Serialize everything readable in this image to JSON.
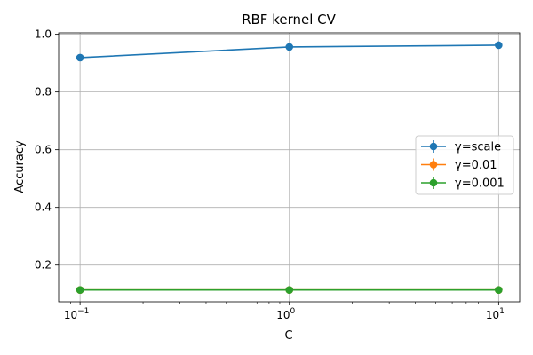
{
  "chart_data": {
    "type": "line",
    "title": "RBF kernel CV",
    "xlabel": "C",
    "ylabel": "Accuracy",
    "xscale": "log",
    "x": [
      0.1,
      1,
      10
    ],
    "xlim": [
      0.079,
      12.6
    ],
    "ylim": [
      0.073,
      1.005
    ],
    "x_tick_labels": [
      {
        "base": "10",
        "exp": "−1",
        "value": 0.1
      },
      {
        "base": "10",
        "exp": "0",
        "value": 1
      },
      {
        "base": "10",
        "exp": "1",
        "value": 10
      }
    ],
    "y_ticks": [
      0.2,
      0.4,
      0.6,
      0.8,
      1.0
    ],
    "y_tick_labels": [
      "0.2",
      "0.4",
      "0.6",
      "0.8",
      "1.0"
    ],
    "grid": true,
    "legend_position": "center-right",
    "series": [
      {
        "name": "γ=scale",
        "color": "#1f77b4",
        "values": [
          0.919,
          0.956,
          0.962
        ]
      },
      {
        "name": "γ=0.01",
        "color": "#ff7f0e",
        "values": [
          0.114,
          0.114,
          0.114
        ]
      },
      {
        "name": "γ=0.001",
        "color": "#2ca02c",
        "values": [
          0.114,
          0.114,
          0.114
        ]
      }
    ]
  }
}
